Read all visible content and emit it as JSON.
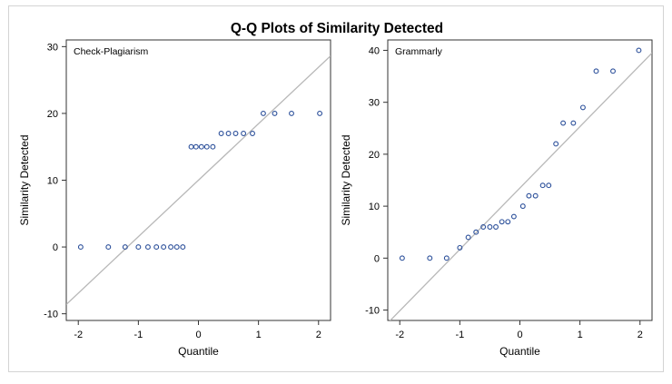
{
  "title": "Q-Q Plots of Similarity Detected",
  "colors": {
    "marker": "#2b4f9a",
    "reference_line": "#b8b8b8",
    "axis": "#333333",
    "text": "#000000",
    "frame_border": "#d4d4d4"
  },
  "chart_data": [
    {
      "type": "scatter",
      "panel_label": "Check-Plagiarism",
      "xlabel": "Quantile",
      "ylabel": "Similarity Detected",
      "xlim": [
        -2.2,
        2.2
      ],
      "ylim": [
        -11,
        31
      ],
      "xticks": [
        -2,
        -1,
        0,
        1,
        2
      ],
      "yticks": [
        -10,
        0,
        10,
        20,
        30
      ],
      "reference_line": [
        [
          -2.2,
          -8.6
        ],
        [
          2.2,
          28.6
        ]
      ],
      "x": [
        -1.96,
        -1.5,
        -1.22,
        -1.0,
        -0.84,
        -0.7,
        -0.58,
        -0.46,
        -0.36,
        -0.26,
        -0.12,
        -0.04,
        0.05,
        0.14,
        0.24,
        0.38,
        0.5,
        0.62,
        0.75,
        0.9,
        1.08,
        1.27,
        1.55,
        2.02
      ],
      "y": [
        0,
        0,
        0,
        0,
        0,
        0,
        0,
        0,
        0,
        0,
        15,
        15,
        15,
        15,
        15,
        17,
        17,
        17,
        17,
        17,
        20,
        20,
        20,
        20
      ],
      "grid": false,
      "legend": "none"
    },
    {
      "type": "scatter",
      "panel_label": "Grammarly",
      "xlabel": "Quantile",
      "ylabel": "Similarity Detected",
      "xlim": [
        -2.2,
        2.2
      ],
      "ylim": [
        -12,
        42
      ],
      "xticks": [
        -2,
        -1,
        0,
        1,
        2
      ],
      "yticks": [
        -10,
        0,
        10,
        20,
        30,
        40
      ],
      "reference_line": [
        [
          -2.2,
          -12.5
        ],
        [
          2.2,
          39.5
        ]
      ],
      "x": [
        -1.96,
        -1.5,
        -1.22,
        -1.0,
        -0.86,
        -0.73,
        -0.61,
        -0.5,
        -0.4,
        -0.3,
        -0.2,
        -0.1,
        0.05,
        0.15,
        0.26,
        0.38,
        0.48,
        0.6,
        0.72,
        0.89,
        1.05,
        1.27,
        1.55,
        1.98
      ],
      "y": [
        0,
        0,
        0,
        2,
        4,
        5,
        6,
        6,
        6,
        7,
        7,
        8,
        10,
        12,
        12,
        14,
        14,
        22,
        26,
        26,
        29,
        36,
        36,
        40
      ],
      "grid": false,
      "legend": "none"
    }
  ]
}
